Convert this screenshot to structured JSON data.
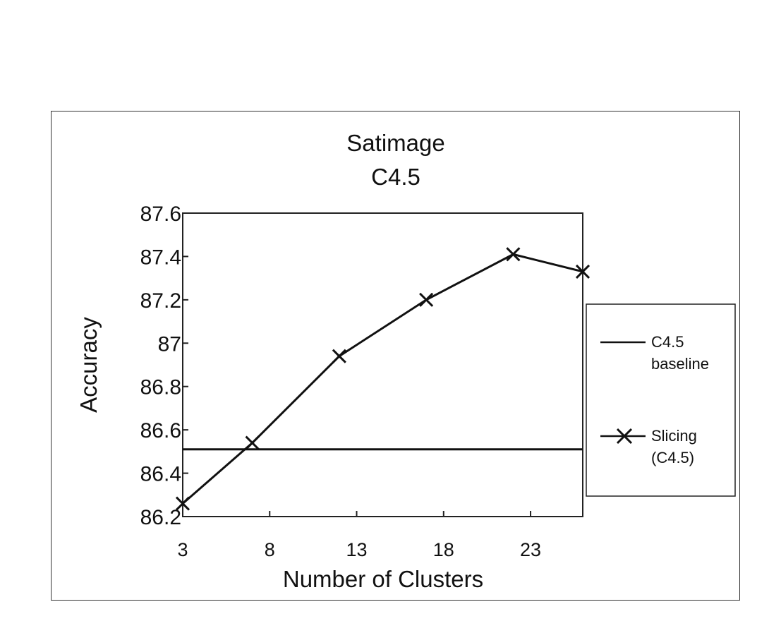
{
  "chart_data": {
    "type": "line",
    "title": "Satimage",
    "subtitle": "C4.5",
    "xlabel": "Number of Clusters",
    "ylabel": "Accuracy",
    "xlim": [
      3,
      26
    ],
    "ylim": [
      86.2,
      87.6
    ],
    "x_ticks": [
      "3",
      "8",
      "13",
      "18",
      "23"
    ],
    "x_tick_values": [
      3,
      8,
      13,
      18,
      23
    ],
    "y_ticks": [
      "86.2",
      "86.4",
      "86.6",
      "86.8",
      "87",
      "87.2",
      "87.4",
      "87.6"
    ],
    "y_tick_values": [
      86.2,
      86.4,
      86.6,
      86.8,
      87.0,
      87.2,
      87.4,
      87.6
    ],
    "grid": false,
    "legend_position": "right",
    "series": [
      {
        "name": "C4.5 baseline",
        "marker": "none",
        "x": [
          3,
          26
        ],
        "values": [
          86.51,
          86.51
        ]
      },
      {
        "name": "Slicing (C4.5)",
        "marker": "x",
        "x": [
          3,
          7,
          12,
          17,
          22,
          26
        ],
        "values": [
          86.26,
          86.54,
          86.94,
          87.2,
          87.41,
          87.33
        ]
      }
    ],
    "legend": {
      "entries": [
        {
          "line1": "C4.5",
          "line2": "baseline"
        },
        {
          "line1": "Slicing",
          "line2": "(C4.5)"
        }
      ]
    }
  }
}
